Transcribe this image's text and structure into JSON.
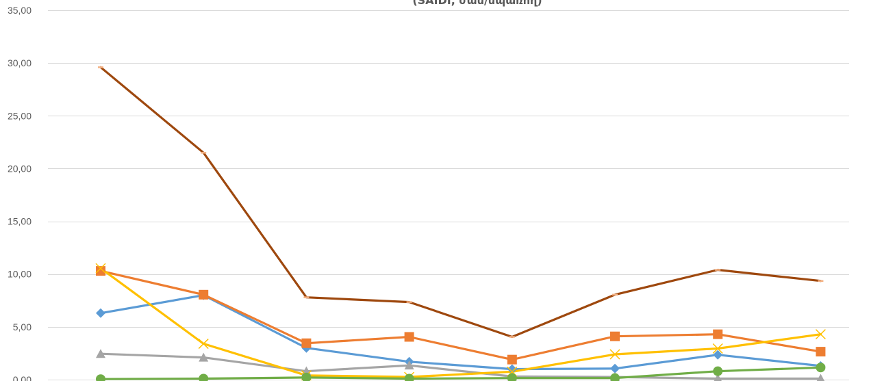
{
  "chart_data": {
    "type": "line",
    "title": "(SAIDI, ժամ/սպառող)",
    "xlabel": "",
    "ylabel": "",
    "ylim": [
      0,
      35
    ],
    "yticks": [
      "0,00",
      "5,00",
      "10,00",
      "15,00",
      "20,00",
      "25,00",
      "30,00",
      "35,00"
    ],
    "ytick_values": [
      0,
      5,
      10,
      15,
      20,
      25,
      30,
      35
    ],
    "x": [
      1,
      2,
      3,
      4,
      5,
      6,
      7,
      8
    ],
    "grid": true,
    "legend": "none",
    "series": [
      {
        "color": "#5b9bd5",
        "marker": "diamond",
        "values": [
          6.3,
          8.0,
          3.0,
          1.7,
          1.0,
          1.05,
          2.35,
          1.3
        ]
      },
      {
        "color": "#ed7d31",
        "marker": "square",
        "values": [
          10.3,
          8.05,
          3.45,
          4.05,
          1.9,
          4.1,
          4.3,
          2.65
        ]
      },
      {
        "color": "#a5a5a5",
        "marker": "triangle",
        "values": [
          2.45,
          2.1,
          0.8,
          1.35,
          0.3,
          0.25,
          0.1,
          0.1
        ]
      },
      {
        "color": "#ffc000",
        "marker": "x",
        "values": [
          10.55,
          3.4,
          0.4,
          0.25,
          0.75,
          2.4,
          2.95,
          4.3
        ]
      },
      {
        "color": "#70ad47",
        "marker": "circle",
        "values": [
          0.05,
          0.1,
          0.2,
          0.1,
          0.15,
          0.15,
          0.8,
          1.15
        ]
      },
      {
        "color": "#9e480e",
        "marker": "dash",
        "values": [
          29.6,
          21.5,
          7.8,
          7.35,
          4.05,
          8.05,
          10.4,
          9.35
        ]
      }
    ]
  }
}
